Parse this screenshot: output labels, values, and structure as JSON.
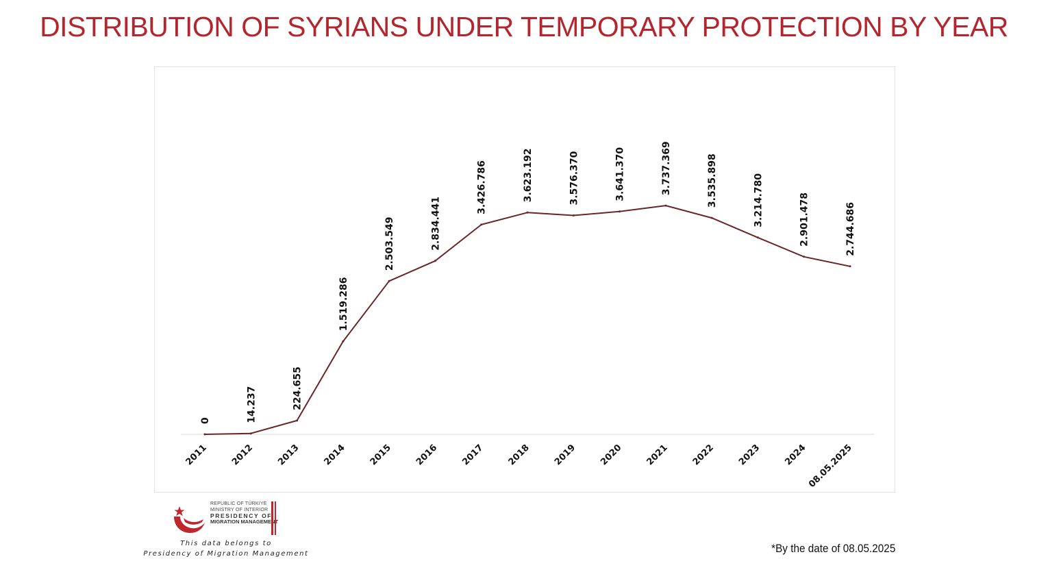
{
  "title": "DISTRIBUTION OF SYRIANS UNDER TEMPORARY PROTECTION BY YEAR",
  "colors": {
    "title": "#b3262e",
    "line": "#6b2526",
    "axis": "#d9d9d9",
    "logo_red": "#c0272d"
  },
  "chart_data": {
    "type": "line",
    "title": "DISTRIBUTION OF SYRIANS UNDER TEMPORARY PROTECTION BY YEAR",
    "xlabel": "",
    "ylabel": "",
    "categories": [
      "2011",
      "2012",
      "2013",
      "2014",
      "2015",
      "2016",
      "2017",
      "2018",
      "2019",
      "2020",
      "2021",
      "2022",
      "2023",
      "2024",
      "08.05.2025"
    ],
    "values": [
      0,
      14237,
      224655,
      1519286,
      2503549,
      2834441,
      3426786,
      3623192,
      3576370,
      3641370,
      3737369,
      3535898,
      3214780,
      2901478,
      2744686
    ],
    "data_labels": [
      "0",
      "14.237",
      "224.655",
      "1.519.286",
      "2.503.549",
      "2.834.441",
      "3.426.786",
      "3.623.192",
      "3.576.370",
      "3.641.370",
      "3.737.369",
      "3.535.898",
      "3.214.780",
      "2.901.478",
      "2.744.686"
    ],
    "ylim": [
      0,
      6000000
    ],
    "grid": false,
    "legend": "none"
  },
  "logo": {
    "icon": "crescent-star-icon",
    "line1": "REPUBLIC OF TÜRKIYE",
    "line2": "MINISTRY OF INTERIOR",
    "line3": "PRESIDENCY OF",
    "line4": "MIGRATION MANAGEMENT"
  },
  "credit": {
    "line1": "This data belongs to",
    "line2": "Presidency of Migration Management"
  },
  "footnote": "*By the date of  08.05.2025"
}
